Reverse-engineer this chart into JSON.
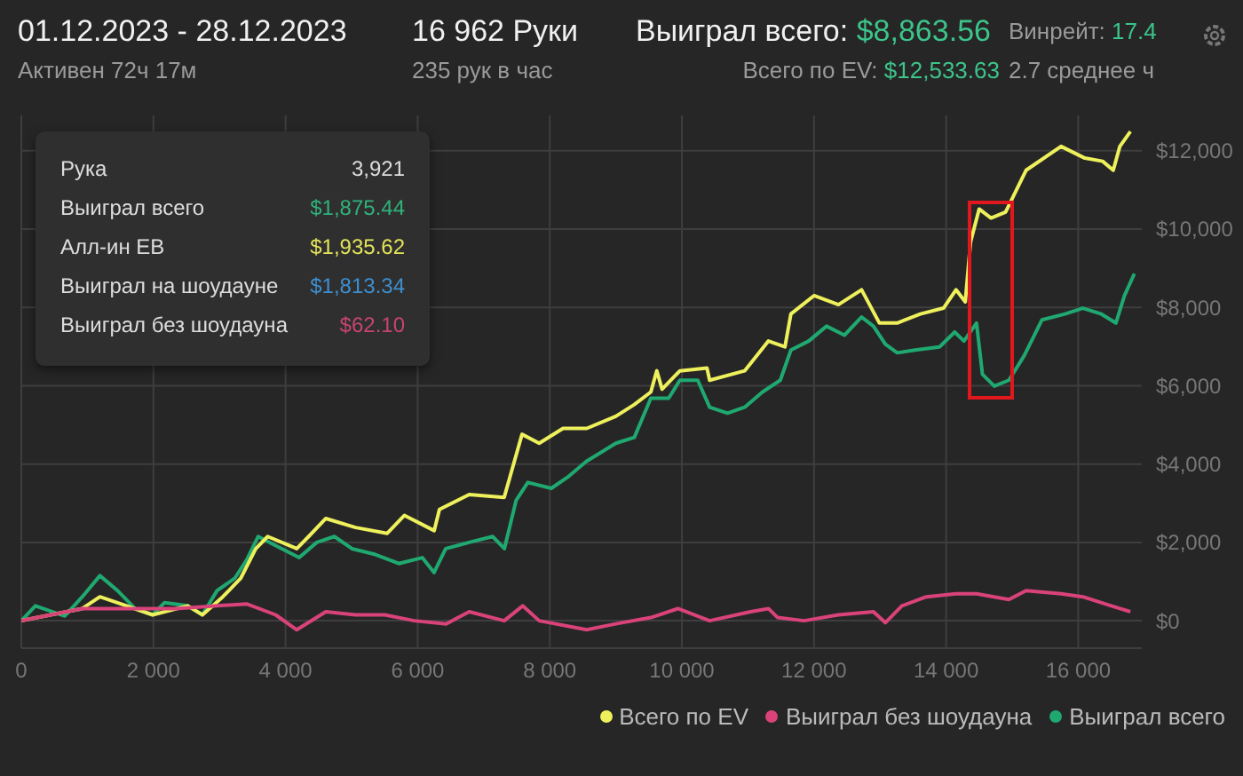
{
  "chart_data": {
    "type": "line",
    "title": "01.12.2023 - 28.12.2023",
    "subtitle": "Активен 72ч 17м",
    "annotations": [
      "16 962 Руки",
      "235 рук в час",
      "Выиграл всего:",
      "$8,863.56",
      "Всего по EV:",
      "$12,533.63",
      "Винрейт:",
      "17.4",
      "2.7 среднее ч",
      "Рука",
      "3,921",
      "Выиграл всего",
      "$1,875.44",
      "Алл-ин EB",
      "$1,935.62",
      "Выиграл на шоудауне",
      "$1,813.34",
      "Выиграл без шоудауна",
      "$62.10"
    ],
    "xlim": [
      0,
      16962
    ],
    "xticks": [
      0,
      {
        "value": 2000,
        "label": "2 000"
      },
      {
        "value": 4000,
        "label": "4 000"
      },
      {
        "value": 6000,
        "label": "6 000"
      },
      {
        "value": 8000,
        "label": "8 000"
      },
      {
        "value": 10000,
        "label": "10 000"
      },
      {
        "value": 12000,
        "label": "12 000"
      },
      {
        "value": 14000,
        "label": "14 000"
      },
      {
        "value": 16000,
        "label": "16 000"
      }
    ],
    "ylim": [
      -700,
      12900
    ],
    "yticks": [
      {
        "value": 0,
        "label": "$0"
      },
      {
        "value": 2000,
        "label": "$2,000"
      },
      {
        "value": 4000,
        "label": "$4,000"
      },
      {
        "value": 6000,
        "label": "$6,000"
      },
      {
        "value": 8000,
        "label": "$8,000"
      },
      {
        "value": 10000,
        "label": "$10,000"
      },
      {
        "value": 12000,
        "label": "$12,000"
      }
    ],
    "grid": true,
    "legend": "bottom right",
    "marker": "none",
    "line_style": "solid",
    "series": [
      {
        "name": "Выиграл всего",
        "color": "#1fa971",
        "x": [
          0,
          213,
          657,
          923,
          1190,
          1456,
          1722,
          1988,
          2166,
          2521,
          2742,
          2964,
          3230,
          3408,
          3585,
          3851,
          4206,
          4473,
          4739,
          5005,
          5360,
          5715,
          6070,
          6248,
          6425,
          6780,
          7135,
          7313,
          7490,
          7668,
          8023,
          8290,
          8556,
          9000,
          9280,
          9530,
          9800,
          9970,
          10240,
          10420,
          10690,
          10950,
          11220,
          11490,
          11650,
          11920,
          12190,
          12460,
          12720,
          12900,
          13080,
          13260,
          13530,
          13900,
          14130,
          14270,
          14460,
          14550,
          14730,
          14950,
          15180,
          15450,
          15800,
          16070,
          16350,
          16570,
          16700,
          16850
        ],
        "values": [
          0,
          380,
          120,
          610,
          1150,
          770,
          310,
          150,
          460,
          380,
          150,
          770,
          1080,
          1540,
          2150,
          1920,
          1610,
          2000,
          2150,
          1840,
          1690,
          1460,
          1610,
          1230,
          1840,
          2000,
          2150,
          1840,
          3070,
          3530,
          3380,
          3690,
          4070,
          4530,
          4680,
          5680,
          5680,
          6140,
          6140,
          5450,
          5300,
          5450,
          5840,
          6140,
          6910,
          7140,
          7520,
          7290,
          7750,
          7520,
          7060,
          6840,
          6910,
          6990,
          7370,
          7140,
          7600,
          6290,
          5990,
          6140,
          6760,
          7680,
          7830,
          7980,
          7830,
          7600,
          8300,
          8860
        ]
      },
      {
        "name": "Всего по EV",
        "color": "#eef05c",
        "x": [
          0,
          923,
          1190,
          1456,
          1988,
          2521,
          2742,
          3050,
          3320,
          3550,
          3730,
          4170,
          4350,
          4610,
          5060,
          5540,
          5800,
          6250,
          6330,
          6780,
          7310,
          7580,
          7840,
          8200,
          8560,
          9000,
          9280,
          9530,
          9620,
          9700,
          9970,
          10380,
          10420,
          10950,
          11310,
          11560,
          11650,
          12000,
          12370,
          12720,
          12990,
          13260,
          13610,
          13960,
          14150,
          14290,
          14370,
          14500,
          14680,
          14900,
          15210,
          15740,
          16100,
          16370,
          16530,
          16630,
          16790
        ],
        "values": [
          0,
          310,
          610,
          460,
          150,
          380,
          150,
          610,
          1080,
          1840,
          2150,
          1840,
          2150,
          2610,
          2380,
          2230,
          2690,
          2300,
          2840,
          3220,
          3150,
          4760,
          4530,
          4910,
          4910,
          5220,
          5520,
          5840,
          6380,
          5910,
          6380,
          6450,
          6140,
          6380,
          7140,
          6990,
          7830,
          8300,
          8070,
          8450,
          7600,
          7600,
          7830,
          7980,
          8450,
          8140,
          9670,
          10510,
          10280,
          10430,
          11500,
          12110,
          11810,
          11730,
          11500,
          12110,
          12490
        ]
      },
      {
        "name": "Выиграл без шоудауна",
        "color": "#d9437a",
        "x": [
          0,
          923,
          2340,
          3410,
          3850,
          4170,
          4610,
          5060,
          5500,
          5950,
          6430,
          6780,
          7310,
          7590,
          7840,
          8560,
          9000,
          9530,
          9940,
          10420,
          11040,
          11310,
          11450,
          11850,
          12370,
          12900,
          13080,
          13330,
          13700,
          14150,
          14460,
          14950,
          15210,
          15740,
          16070,
          16500,
          16790
        ],
        "values": [
          0,
          310,
          310,
          430,
          150,
          -230,
          230,
          150,
          150,
          0,
          -80,
          230,
          0,
          380,
          0,
          -230,
          -80,
          80,
          310,
          0,
          230,
          310,
          80,
          0,
          150,
          230,
          -50,
          380,
          610,
          690,
          690,
          540,
          770,
          690,
          610,
          380,
          230
        ]
      }
    ]
  }
}
